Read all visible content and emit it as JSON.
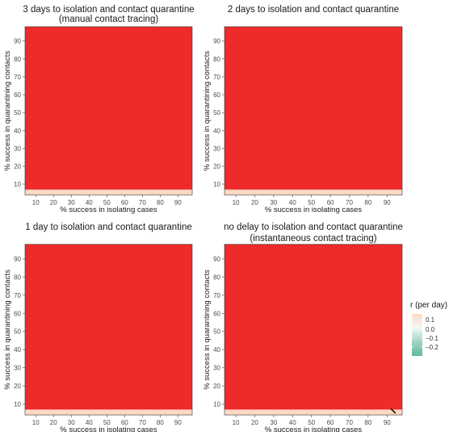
{
  "chart_data": [
    {
      "type": "heatmap",
      "title": "3 days to isolation and contact quarantine",
      "subtitle": "(manual contact tracing)",
      "xlabel": "% success in isolating cases",
      "ylabel": "% success in quarantining contacts",
      "x_ticks": [
        10,
        20,
        30,
        40,
        50,
        60,
        70,
        80,
        90
      ],
      "y_ticks": [
        10,
        20,
        30,
        40,
        50,
        60,
        70,
        80,
        90
      ],
      "xlim": [
        4,
        98
      ],
      "ylim": [
        4,
        98
      ],
      "bands": [
        {
          "y": [
            4,
            7
          ],
          "color": "#fcd9c3"
        },
        {
          "y": [
            7,
            98
          ],
          "color": "#ee2b2a"
        }
      ]
    },
    {
      "type": "heatmap",
      "title": "2 days to isolation and contact quarantine",
      "subtitle": "",
      "xlabel": "% success in isolating cases",
      "ylabel": "% success in quarantining contacts",
      "x_ticks": [
        10,
        20,
        30,
        40,
        50,
        60,
        70,
        80,
        90
      ],
      "y_ticks": [
        10,
        20,
        30,
        40,
        50,
        60,
        70,
        80,
        90
      ],
      "xlim": [
        4,
        98
      ],
      "ylim": [
        4,
        98
      ],
      "bands": [
        {
          "y": [
            4,
            7
          ],
          "color": "#fcd9c3"
        },
        {
          "y": [
            7,
            98
          ],
          "color": "#ee2b2a"
        }
      ]
    },
    {
      "type": "heatmap",
      "title": "1 day to isolation and contact quarantine",
      "subtitle": "",
      "xlabel": "% success in isolating cases",
      "ylabel": "% success in quarantining contacts",
      "x_ticks": [
        10,
        20,
        30,
        40,
        50,
        60,
        70,
        80,
        90
      ],
      "y_ticks": [
        10,
        20,
        30,
        40,
        50,
        60,
        70,
        80,
        90
      ],
      "xlim": [
        4,
        98
      ],
      "ylim": [
        4,
        98
      ],
      "bands": [
        {
          "y": [
            4,
            7
          ],
          "color": "#fcd9c3"
        },
        {
          "y": [
            7,
            98
          ],
          "color": "#ee2b2a"
        }
      ]
    },
    {
      "type": "heatmap",
      "title": "no delay to isolation and contact quarantine",
      "subtitle": "(instantaneous contact tracing)",
      "xlabel": "% success in isolating cases",
      "ylabel": "% success in quarantining contacts",
      "x_ticks": [
        10,
        20,
        30,
        40,
        50,
        60,
        70,
        80,
        90
      ],
      "y_ticks": [
        10,
        20,
        30,
        40,
        50,
        60,
        70,
        80,
        90
      ],
      "xlim": [
        4,
        98
      ],
      "ylim": [
        4,
        98
      ],
      "bands": [
        {
          "y": [
            4,
            7
          ],
          "color": "#fcd9c3"
        },
        {
          "y": [
            7,
            98
          ],
          "color": "#ee2b2a"
        }
      ],
      "contour_line": {
        "x": [
          92,
          94.5
        ],
        "y": [
          7.5,
          5
        ]
      }
    }
  ],
  "legend": {
    "title": "r (per day)",
    "labels": [
      "0.1",
      "0.0",
      "−0.1",
      "−0.2"
    ],
    "gradient_colors": [
      "#fcd9c3",
      "#f2f8f4",
      "#9fd4bf",
      "#5fb99a"
    ]
  }
}
